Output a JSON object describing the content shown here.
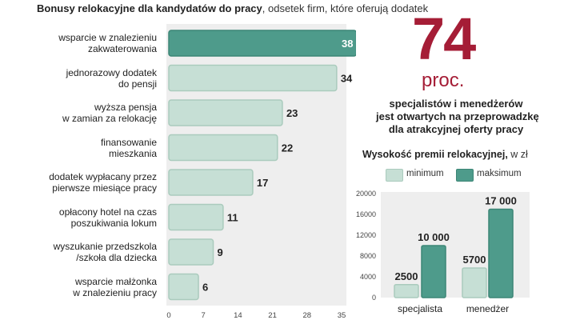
{
  "title": {
    "bold": "Bonusy relokacyjne dla kandydatów do pracy",
    "rest": ", odsetek  firm, które oferują dodatek"
  },
  "headline": {
    "number": "74",
    "unit": "proc.",
    "description": "specjalistów i menedżerów\njest otwartych na przeprowadzkę\ndla atrakcyjnej oferty pracy"
  },
  "premium_title": {
    "bold": "Wysokość premii relokacyjnej,",
    "rest": " w zł"
  },
  "legend": {
    "min_label": "minimum",
    "max_label": "maksimum"
  },
  "colors": {
    "highlight_bar": "#4e9b8b",
    "bar": "#c6dfd5",
    "bar_border": "#aacbbd",
    "accent_red": "#a51d36",
    "panel_bg": "#eeeeee"
  },
  "chart_data": [
    {
      "type": "bar",
      "orientation": "horizontal",
      "title": "Bonusy relokacyjne dla kandydatów do pracy, odsetek  firm, które oferują dodatek",
      "categories": [
        "wsparcie w znalezieniu\nzakwaterowania",
        "jednorazowy dodatek\ndo pensji",
        "wyższa pensja\nw zamian za relokację",
        "finansowanie\nmieszkania",
        "dodatek wypłacany przez\npierwsze miesiące pracy",
        "opłacony hotel na czas\nposzukiwania lokum",
        "wyszukanie przedszkola\n/szkoła dla dziecka",
        "wsparcie małżonka\nw znalezieniu pracy"
      ],
      "values": [
        38,
        34,
        23,
        22,
        17,
        11,
        9,
        6
      ],
      "value_labels": [
        "38",
        "34",
        "23",
        "22",
        "17",
        "11",
        "9",
        "6"
      ],
      "xlim": [
        0,
        35
      ],
      "xticks": [
        0,
        7,
        14,
        21,
        28,
        35
      ],
      "xtick_labels": [
        "0",
        "7",
        "14",
        "21",
        "28",
        "35"
      ],
      "grid": false
    },
    {
      "type": "bar",
      "orientation": "vertical",
      "title": "Wysokość premii relokacyjnej, w zł",
      "categories": [
        "specjalista",
        "menedżer"
      ],
      "series": [
        {
          "name": "minimum",
          "values": [
            2500,
            5700
          ],
          "labels": [
            "2500",
            "5700"
          ]
        },
        {
          "name": "maksimum",
          "values": [
            10000,
            17000
          ],
          "labels": [
            "10 000",
            "17 000"
          ]
        }
      ],
      "ylim": [
        0,
        20000
      ],
      "yticks": [
        0,
        4000,
        8000,
        12000,
        16000,
        20000
      ],
      "ytick_labels": [
        "0",
        "4000",
        "8000",
        "12000",
        "16000",
        "20000"
      ],
      "grid": false
    }
  ]
}
